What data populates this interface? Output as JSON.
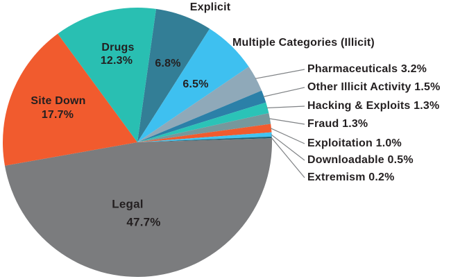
{
  "chart_data": {
    "type": "pie",
    "title": "",
    "unit": "%",
    "start_angle_deg": 8,
    "direction": "clockwise",
    "legend": "none (direct labels and callout leader lines)",
    "background_color": "#ffffff",
    "text_color": "#231f20",
    "leader_line_color": "#7f8285",
    "slices": [
      {
        "label": "Explicit",
        "value": 6.8,
        "pct_label": "6.8%",
        "color": "#337e96",
        "label_style": "inside-pct-outside-name"
      },
      {
        "label": "Multiple Categories (Illicit)",
        "value": 6.5,
        "pct_label": "6.5%",
        "color": "#3ec0f0",
        "label_style": "inside-pct-outside-name"
      },
      {
        "label": "Pharmaceuticals",
        "value": 3.2,
        "pct_label": "3.2%",
        "color": "#8fa9b9",
        "label_style": "callout"
      },
      {
        "label": "Other Illicit Activity",
        "value": 1.5,
        "pct_label": "1.5%",
        "color": "#2b80a8",
        "label_style": "callout"
      },
      {
        "label": "Hacking & Exploits",
        "value": 1.3,
        "pct_label": "1.3%",
        "color": "#2bc3b7",
        "label_style": "callout"
      },
      {
        "label": "Fraud",
        "value": 1.3,
        "pct_label": "1.3%",
        "color": "#76989c",
        "label_style": "callout"
      },
      {
        "label": "Exploitation",
        "value": 1.0,
        "pct_label": "1.0%",
        "color": "#f15b2e",
        "label_style": "callout"
      },
      {
        "label": "Downloadable",
        "value": 0.5,
        "pct_label": "0.5%",
        "color": "#41c4f1",
        "label_style": "callout"
      },
      {
        "label": "Extremism",
        "value": 0.2,
        "pct_label": "0.2%",
        "color": "#1f6377",
        "label_style": "callout"
      },
      {
        "label": "Legal",
        "value": 47.7,
        "pct_label": "47.7%",
        "color": "#7b7c7e",
        "label_style": "inside"
      },
      {
        "label": "Site Down",
        "value": 17.7,
        "pct_label": "17.7%",
        "color": "#f15b2e",
        "label_style": "inside"
      },
      {
        "label": "Drugs",
        "value": 12.3,
        "pct_label": "12.3%",
        "color": "#29bfb2",
        "label_style": "inside"
      }
    ]
  }
}
